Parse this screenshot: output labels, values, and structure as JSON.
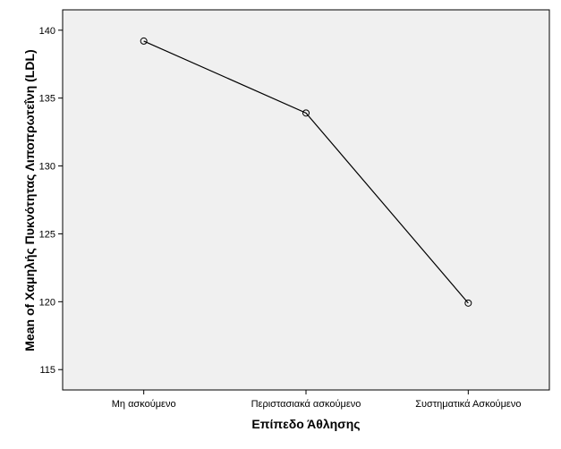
{
  "chart_data": {
    "type": "line",
    "categories": [
      "Μη ασκούμενο",
      "Περιστασιακά ασκούμενο",
      "Συστηματικά Ασκούμενο"
    ],
    "values": [
      139.2,
      133.9,
      119.9
    ],
    "xlabel": "Επίπεδο Άθλησης",
    "ylabel": "Mean of Χαμηλής Πυκνότητας Λιποπρωτεΐνη (LDL)",
    "ylim": [
      113.5,
      141.5
    ],
    "yticks": [
      115,
      120,
      125,
      130,
      135,
      140
    ],
    "grid": false,
    "colors": {
      "plot_background": "#f0f0f0",
      "line": "#000000",
      "marker": "#000000"
    }
  }
}
